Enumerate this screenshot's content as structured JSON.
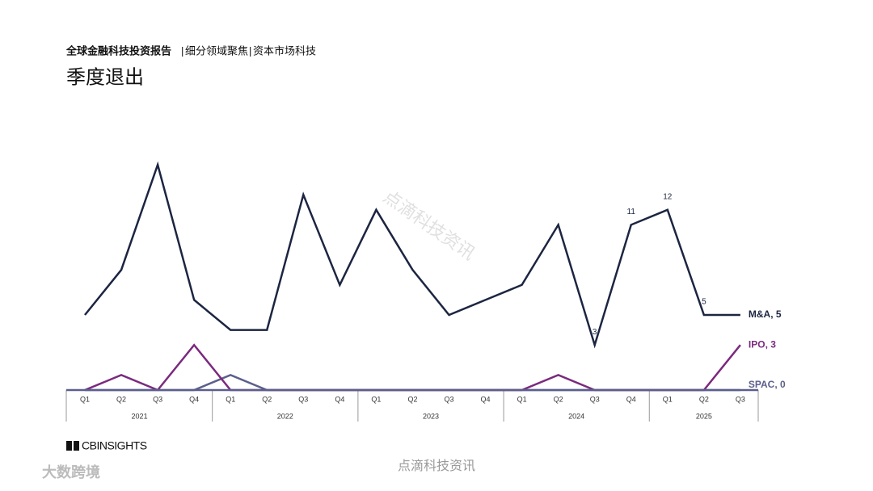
{
  "header": {
    "report": "全球金融科技投资报告",
    "section": "细分领域聚焦",
    "topic": "资本市场科技"
  },
  "logo": "CBINSIGHTS",
  "watermarks": [
    "点滴科技资讯",
    "点滴科技资讯",
    "大数跨境"
  ],
  "chart_data": {
    "type": "line",
    "title": "季度退出",
    "categories": [
      "Q1",
      "Q2",
      "Q3",
      "Q4",
      "Q1",
      "Q2",
      "Q3",
      "Q4",
      "Q1",
      "Q2",
      "Q3",
      "Q4",
      "Q1",
      "Q2",
      "Q3",
      "Q4",
      "Q1",
      "Q2",
      "Q3"
    ],
    "x_groups": [
      {
        "label": "2021",
        "size": 4
      },
      {
        "label": "2022",
        "size": 4
      },
      {
        "label": "2023",
        "size": 4
      },
      {
        "label": "2024",
        "size": 4
      },
      {
        "label": "2025",
        "size": 3
      }
    ],
    "ylim": [
      0,
      15
    ],
    "series": [
      {
        "name": "M&A",
        "end_label": "M&A, 5",
        "color": "#1c2541",
        "values": [
          5,
          8,
          15,
          6,
          4,
          4,
          13,
          7,
          12,
          8,
          5,
          6,
          7,
          11,
          3,
          11,
          12,
          5,
          5
        ],
        "labeled_points": [
          14,
          15,
          16,
          17
        ]
      },
      {
        "name": "IPO",
        "end_label": "IPO, 3",
        "color": "#7b2a7e",
        "values": [
          0,
          1,
          0,
          3,
          0,
          0,
          0,
          0,
          0,
          0,
          0,
          0,
          0,
          1,
          0,
          0,
          0,
          0,
          3
        ]
      },
      {
        "name": "SPAC",
        "end_label": "SPAC, 0",
        "color": "#5b5f8c",
        "values": [
          0,
          0,
          0,
          0,
          1,
          0,
          0,
          0,
          0,
          0,
          0,
          0,
          0,
          0,
          0,
          0,
          0,
          0,
          0
        ]
      }
    ]
  }
}
